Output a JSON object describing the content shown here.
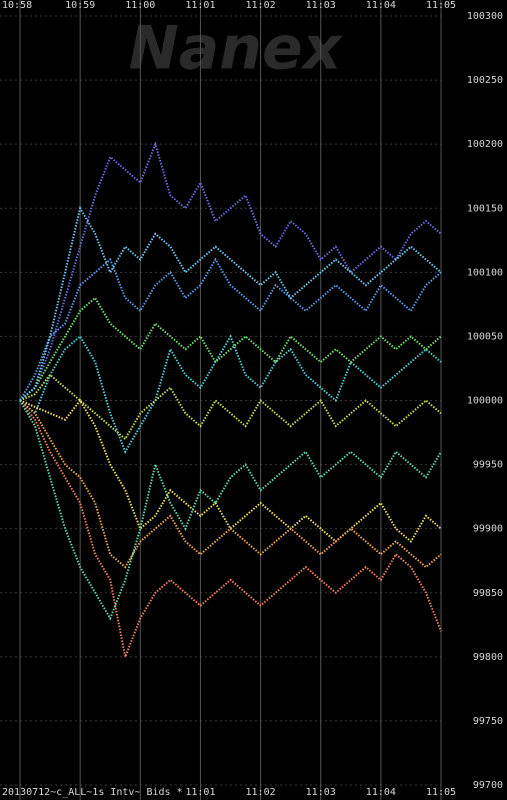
{
  "chart_data": {
    "type": "line",
    "watermark": "Nanex",
    "caption": "20130712~c_ALL~1s Intv~ Bids *",
    "x": [
      0,
      15,
      30,
      45,
      60,
      75,
      90,
      105,
      120,
      135,
      150,
      165,
      180,
      195,
      210,
      225,
      240,
      255,
      270,
      285,
      300,
      315,
      330,
      345,
      360,
      375,
      390,
      405,
      420
    ],
    "xlim": [
      0,
      420
    ],
    "xticks": [
      {
        "value": 0,
        "label": "10:58"
      },
      {
        "value": 60,
        "label": "10:59"
      },
      {
        "value": 120,
        "label": "11:00"
      },
      {
        "value": 180,
        "label": "11:01"
      },
      {
        "value": 240,
        "label": "11:02"
      },
      {
        "value": 300,
        "label": "11:03"
      },
      {
        "value": 360,
        "label": "11:04"
      },
      {
        "value": 420,
        "label": "11:05"
      }
    ],
    "ylim": [
      99700,
      100300
    ],
    "yticks": [
      99700,
      99750,
      99800,
      99850,
      99900,
      99950,
      100000,
      100050,
      100100,
      100150,
      100200,
      100250,
      100300
    ],
    "grid": true,
    "series": [
      {
        "color": "#6c6ce0",
        "values": [
          100000,
          100010,
          100040,
          100080,
          100120,
          100160,
          100190,
          100180,
          100170,
          100200,
          100160,
          100150,
          100170,
          100140,
          100150,
          100160,
          100130,
          100120,
          100140,
          100130,
          100110,
          100120,
          100100,
          100110,
          100120,
          100110,
          100130,
          100140,
          100130
        ]
      },
      {
        "color": "#5a9ae8",
        "values": [
          100000,
          100020,
          100050,
          100060,
          100090,
          100100,
          100110,
          100080,
          100070,
          100090,
          100100,
          100080,
          100090,
          100110,
          100090,
          100080,
          100070,
          100090,
          100080,
          100070,
          100080,
          100090,
          100080,
          100070,
          100090,
          100080,
          100070,
          100090,
          100100
        ]
      },
      {
        "color": "#50d0d8",
        "values": [
          100000,
          99990,
          100020,
          100040,
          100050,
          100030,
          99990,
          99960,
          99980,
          100000,
          100040,
          100020,
          100010,
          100030,
          100050,
          100020,
          100010,
          100030,
          100040,
          100020,
          100010,
          100000,
          100030,
          100020,
          100010,
          100020,
          100030,
          100040,
          100030
        ]
      },
      {
        "color": "#70e070",
        "values": [
          100000,
          100010,
          100030,
          100050,
          100070,
          100080,
          100060,
          100050,
          100040,
          100060,
          100050,
          100040,
          100050,
          100030,
          100040,
          100050,
          100040,
          100030,
          100050,
          100040,
          100030,
          100040,
          100030,
          100040,
          100050,
          100040,
          100050,
          100040,
          100050
        ]
      },
      {
        "color": "#c0e050",
        "values": [
          100000,
          100005,
          100020,
          100010,
          100000,
          99990,
          99980,
          99970,
          99990,
          100000,
          100010,
          99990,
          99980,
          100000,
          99990,
          99980,
          100000,
          99990,
          99980,
          99990,
          100000,
          99980,
          99990,
          100000,
          99990,
          99980,
          99990,
          100000,
          99990
        ]
      },
      {
        "color": "#f0e060",
        "values": [
          100000,
          99995,
          99990,
          99985,
          100000,
          99980,
          99950,
          99930,
          99900,
          99910,
          99930,
          99920,
          99910,
          99920,
          99900,
          99910,
          99920,
          99910,
          99900,
          99910,
          99900,
          99890,
          99900,
          99910,
          99920,
          99900,
          99890,
          99910,
          99900
        ]
      },
      {
        "color": "#f0a850",
        "values": [
          100000,
          99990,
          99970,
          99950,
          99940,
          99920,
          99880,
          99870,
          99890,
          99900,
          99910,
          99890,
          99880,
          99890,
          99900,
          99890,
          99880,
          99890,
          99900,
          99890,
          99880,
          99890,
          99900,
          99890,
          99880,
          99890,
          99880,
          99870,
          99880
        ]
      },
      {
        "color": "#f08060",
        "values": [
          100000,
          99985,
          99960,
          99940,
          99920,
          99880,
          99860,
          99800,
          99830,
          99850,
          99860,
          99850,
          99840,
          99850,
          99860,
          99850,
          99840,
          99850,
          99860,
          99870,
          99860,
          99850,
          99860,
          99870,
          99860,
          99880,
          99870,
          99850,
          99820
        ]
      },
      {
        "color": "#60d8a8",
        "values": [
          100000,
          99980,
          99940,
          99900,
          99870,
          99850,
          99830,
          99860,
          99900,
          99950,
          99920,
          99900,
          99930,
          99920,
          99940,
          99950,
          99930,
          99940,
          99950,
          99960,
          99940,
          99950,
          99960,
          99950,
          99940,
          99960,
          99950,
          99940,
          99960
        ]
      },
      {
        "color": "#70c8f0",
        "values": [
          100000,
          100010,
          100050,
          100100,
          100150,
          100130,
          100100,
          100120,
          100110,
          100130,
          100120,
          100100,
          100110,
          100120,
          100110,
          100100,
          100090,
          100100,
          100080,
          100090,
          100100,
          100110,
          100100,
          100090,
          100100,
          100110,
          100120,
          100110,
          100100
        ]
      }
    ]
  }
}
